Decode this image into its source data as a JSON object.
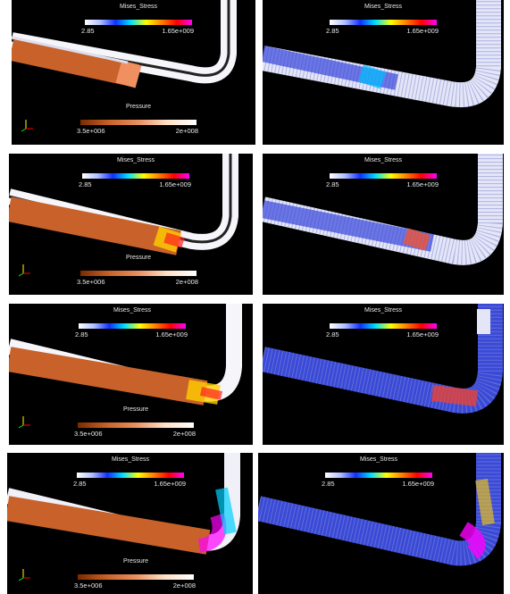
{
  "legends": {
    "stress": {
      "title": "Mises_Stress",
      "min": "2.85",
      "max": "1.65e+009"
    },
    "pressure": {
      "title": "Pressure",
      "min": "3.5e+006",
      "max": "2e+008"
    }
  },
  "colors": {
    "background": "#000000",
    "pipe_wall": "#f0f0f5",
    "fluid": "#c8622a",
    "stress_low": "#ffffff",
    "stress_mid": "#1f3cff",
    "stress_high": "#ff00ff"
  },
  "rows": 4,
  "columns": 2
}
